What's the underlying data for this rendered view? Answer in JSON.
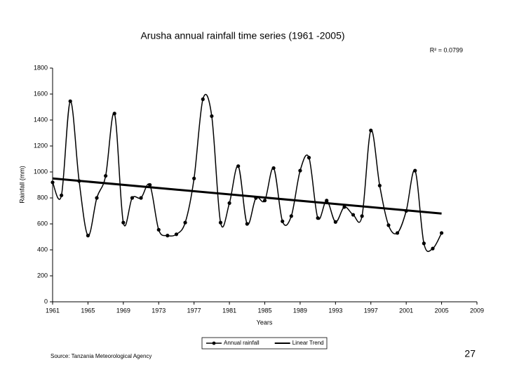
{
  "chart_data": {
    "type": "line",
    "title": "Arusha annual rainfall time series (1961 -2005)",
    "annotations": [
      "R² = 0.0799"
    ],
    "xlabel": "Years",
    "ylabel": "Rainfall (mm)",
    "xlim": [
      1961,
      2009
    ],
    "xticks": [
      1961,
      1965,
      1969,
      1973,
      1977,
      1981,
      1985,
      1989,
      1993,
      1997,
      2001,
      2005,
      2009
    ],
    "ylim": [
      0,
      1800
    ],
    "yticks": [
      0,
      200,
      400,
      600,
      800,
      1000,
      1200,
      1400,
      1600,
      1800
    ],
    "grid": false,
    "legend": "bottom",
    "smooth": true,
    "series": [
      {
        "name": "Annual rainfall",
        "color": "#000000",
        "markers": true,
        "width": 1.5,
        "x": [
          1961,
          1962,
          1963,
          1964,
          1965,
          1966,
          1967,
          1968,
          1969,
          1970,
          1971,
          1972,
          1973,
          1974,
          1975,
          1976,
          1977,
          1978,
          1979,
          1980,
          1981,
          1982,
          1983,
          1984,
          1985,
          1986,
          1987,
          1988,
          1989,
          1990,
          1991,
          1992,
          1993,
          1994,
          1995,
          1996,
          1997,
          1998,
          1999,
          2000,
          2001,
          2002,
          2003,
          2004,
          2005
        ],
        "values": [
          920,
          820,
          1545,
          930,
          510,
          800,
          970,
          1450,
          610,
          800,
          800,
          900,
          555,
          510,
          520,
          610,
          950,
          1560,
          1430,
          610,
          760,
          1045,
          600,
          800,
          780,
          1030,
          620,
          660,
          1010,
          1110,
          645,
          780,
          615,
          730,
          670,
          660,
          1320,
          895,
          590,
          530,
          700,
          1010,
          450,
          410,
          530
        ]
      },
      {
        "name": "Linear Trend",
        "color": "#000000",
        "markers": false,
        "width": 3,
        "x": [
          1961,
          2005
        ],
        "values": [
          950,
          680
        ]
      }
    ]
  },
  "source": "Source: Tanzania Meteorological Agency",
  "page_number": 27
}
